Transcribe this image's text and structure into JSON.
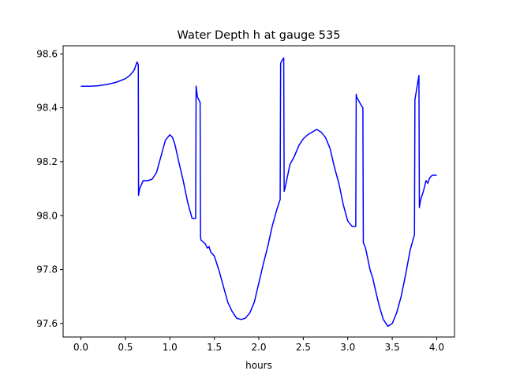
{
  "chart_data": {
    "type": "line",
    "title": "Water Depth h at gauge 535",
    "xlabel": "hours",
    "ylabel": "",
    "xlim": [
      -0.2,
      4.2
    ],
    "ylim": [
      97.55,
      98.63
    ],
    "x_ticks": [
      0.0,
      0.5,
      1.0,
      1.5,
      2.0,
      2.5,
      3.0,
      3.5,
      4.0
    ],
    "x_tick_labels": [
      "0.0",
      "0.5",
      "1.0",
      "1.5",
      "2.0",
      "2.5",
      "3.0",
      "3.5",
      "4.0"
    ],
    "y_ticks": [
      97.6,
      97.8,
      98.0,
      98.2,
      98.4,
      98.6
    ],
    "y_tick_labels": [
      "97.6",
      "97.8",
      "98.0",
      "98.2",
      "98.4",
      "98.6"
    ],
    "grid": false,
    "series": [
      {
        "color": "#0000ff",
        "x": [
          0.0,
          0.1,
          0.2,
          0.3,
          0.4,
          0.5,
          0.55,
          0.6,
          0.63,
          0.645,
          0.648,
          0.66,
          0.7,
          0.75,
          0.8,
          0.85,
          0.9,
          0.95,
          1.0,
          1.03,
          1.06,
          1.1,
          1.15,
          1.2,
          1.25,
          1.29,
          1.295,
          1.31,
          1.34,
          1.345,
          1.35,
          1.4,
          1.42,
          1.44,
          1.46,
          1.5,
          1.55,
          1.6,
          1.65,
          1.7,
          1.75,
          1.8,
          1.85,
          1.9,
          1.95,
          2.0,
          2.05,
          2.1,
          2.15,
          2.2,
          2.24,
          2.245,
          2.25,
          2.28,
          2.285,
          2.3,
          2.35,
          2.4,
          2.45,
          2.5,
          2.55,
          2.6,
          2.65,
          2.7,
          2.75,
          2.8,
          2.85,
          2.9,
          2.95,
          3.0,
          3.05,
          3.09,
          3.095,
          3.1,
          3.15,
          3.17,
          3.175,
          3.2,
          3.25,
          3.28,
          3.3,
          3.35,
          3.4,
          3.45,
          3.5,
          3.55,
          3.6,
          3.65,
          3.7,
          3.75,
          3.755,
          3.8,
          3.805,
          3.82,
          3.85,
          3.88,
          3.9,
          3.92,
          3.95,
          4.0
        ],
        "y": [
          98.48,
          98.48,
          98.482,
          98.487,
          98.495,
          98.508,
          98.52,
          98.54,
          98.57,
          98.56,
          98.075,
          98.1,
          98.13,
          98.13,
          98.135,
          98.16,
          98.22,
          98.28,
          98.3,
          98.29,
          98.26,
          98.2,
          98.13,
          98.05,
          97.99,
          97.99,
          98.48,
          98.44,
          98.42,
          97.92,
          97.91,
          97.895,
          97.88,
          97.885,
          97.865,
          97.85,
          97.8,
          97.74,
          97.68,
          97.645,
          97.62,
          97.615,
          97.62,
          97.64,
          97.68,
          97.75,
          97.82,
          97.885,
          97.96,
          98.02,
          98.06,
          98.56,
          98.57,
          98.585,
          98.09,
          98.11,
          98.19,
          98.22,
          98.26,
          98.285,
          98.3,
          98.31,
          98.32,
          98.31,
          98.29,
          98.25,
          98.18,
          98.12,
          98.04,
          97.98,
          97.96,
          97.96,
          98.45,
          98.44,
          98.41,
          98.4,
          97.9,
          97.88,
          97.8,
          97.77,
          97.74,
          97.67,
          97.615,
          97.59,
          97.6,
          97.64,
          97.7,
          97.78,
          97.87,
          97.93,
          98.43,
          98.52,
          98.03,
          98.06,
          98.09,
          98.13,
          98.12,
          98.14,
          98.15,
          98.15
        ]
      }
    ]
  }
}
